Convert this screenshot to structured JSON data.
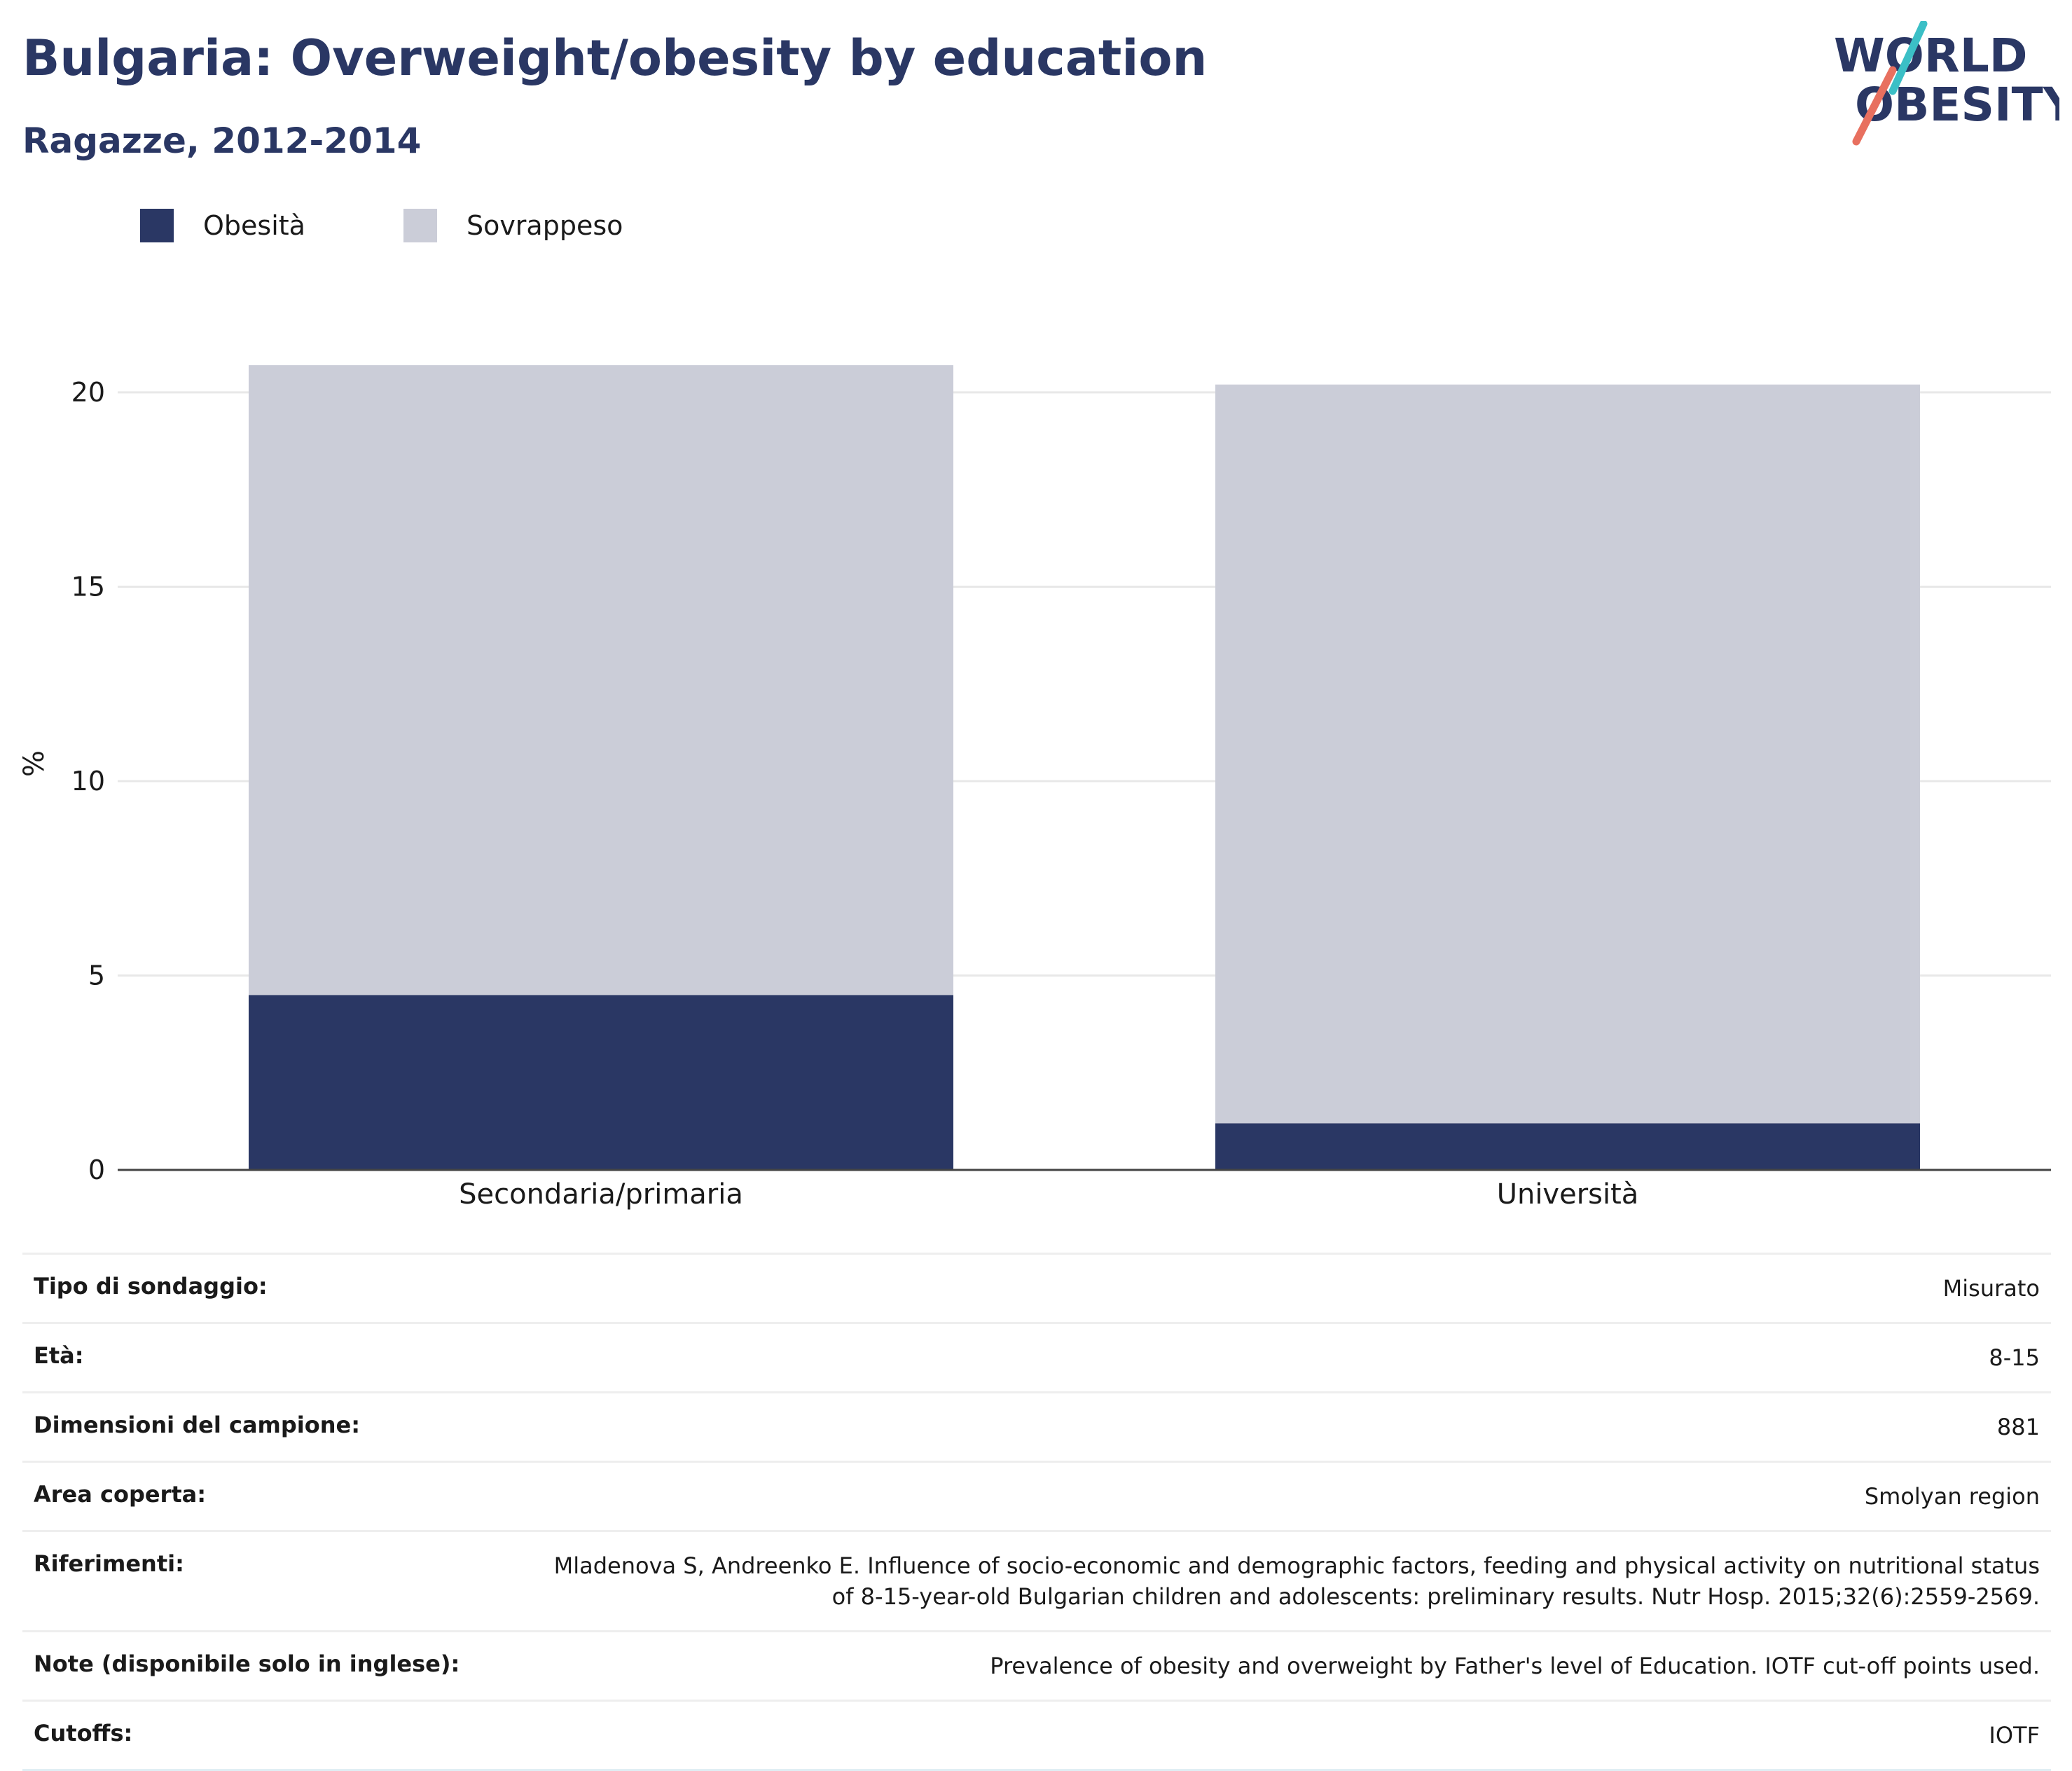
{
  "header": {
    "title": "Bulgaria: Overweight/obesity by education",
    "subtitle": "Ragazze, 2012-2014"
  },
  "logo": {
    "line1": "WORLD",
    "line2": "OBESITY",
    "accent_teal": "#3bbfc6",
    "accent_red": "#e8705f"
  },
  "colors": {
    "obesity": "#2a3764",
    "overweight": "#cbcdd8",
    "text": "#1a1a1a",
    "title": "#2a3764"
  },
  "legend": [
    {
      "label": "Obesità",
      "color": "#2a3764"
    },
    {
      "label": "Sovrappeso",
      "color": "#cbcdd8"
    }
  ],
  "chart_data": {
    "type": "bar",
    "stacked": true,
    "categories": [
      "Secondaria/primaria",
      "Università"
    ],
    "series": [
      {
        "name": "Obesità",
        "values": [
          4.5,
          1.2
        ],
        "color": "#2a3764"
      },
      {
        "name": "Sovrappeso",
        "values": [
          16.2,
          19.0
        ],
        "color": "#cbcdd8"
      }
    ],
    "ylabel": "%",
    "ylim": [
      0,
      20.7
    ],
    "yticks": [
      0,
      5,
      10,
      15,
      20
    ],
    "grid": true,
    "legend_position": "top-left"
  },
  "info": [
    {
      "key": "Tipo di sondaggio:",
      "value": "Misurato"
    },
    {
      "key": "Età:",
      "value": "8-15"
    },
    {
      "key": "Dimensioni del campione:",
      "value": "881"
    },
    {
      "key": "Area coperta:",
      "value": "Smolyan region"
    },
    {
      "key": "Riferimenti:",
      "value": "Mladenova S, Andreenko E. Influence of socio-economic and demographic factors, feeding and physical activity on nutritional status of 8-15-year-old Bulgarian children and adolescents: preliminary results. Nutr Hosp. 2015;32(6):2559-2569."
    },
    {
      "key": "Note (disponibile solo in inglese):",
      "value": "Prevalence of obesity and overweight by Father's level of Education. IOTF cut-off points used."
    },
    {
      "key": "Cutoffs:",
      "value": "IOTF"
    }
  ]
}
